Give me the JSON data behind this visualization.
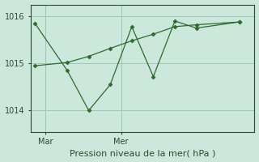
{
  "title": "Pression niveau de la mer( hPa )",
  "background_color": "#cce8dc",
  "line_color": "#2d6a2d",
  "grid_color": "#9ec8b0",
  "axis_color": "#2d4a2d",
  "text_color": "#2d4a2d",
  "ylim": [
    1013.55,
    1016.25
  ],
  "yticks": [
    1014,
    1015,
    1016
  ],
  "series1_x": [
    0,
    1.5,
    2.5,
    3.5,
    4.5,
    5.5,
    6.5,
    7.5,
    9.5
  ],
  "series1_y": [
    1015.85,
    1014.85,
    1014.0,
    1014.55,
    1015.78,
    1014.72,
    1015.9,
    1015.75,
    1015.88
  ],
  "series2_x": [
    0,
    1.5,
    2.5,
    3.5,
    4.5,
    5.5,
    6.5,
    7.5,
    9.5
  ],
  "series2_y": [
    1014.95,
    1015.02,
    1015.15,
    1015.32,
    1015.48,
    1015.62,
    1015.78,
    1015.82,
    1015.88
  ],
  "xtick_positions": [
    0.5,
    4.0
  ],
  "xtick_labels": [
    "Mar",
    "Mer"
  ],
  "xlim": [
    -0.2,
    10.2
  ],
  "title_fontsize": 8,
  "tick_fontsize": 7
}
